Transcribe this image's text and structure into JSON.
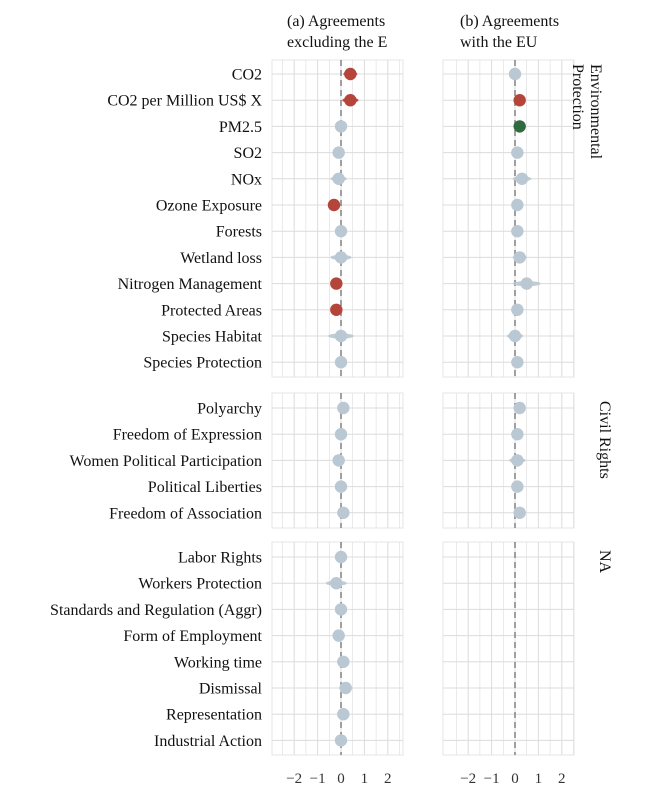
{
  "chart_data": {
    "type": "scatter",
    "titles": [
      "(a) Agreements excluding the EU",
      "(b) Agreements with the EU"
    ],
    "title_lines": [
      [
        "(a) Agreements",
        "excluding the E"
      ],
      [
        "(b) Agreements",
        "with the EU"
      ]
    ],
    "x_ticks": [
      -2,
      -1,
      0,
      1,
      2
    ],
    "x_tick_labels": [
      "−2",
      "−1",
      "0",
      "1",
      "2"
    ],
    "xlim": [
      -2.6,
      2.6
    ],
    "reference_line": 0,
    "colors": {
      "not_significant": "#b9c8d2",
      "negative_or_positive_red": "#b5443a",
      "positive_green": "#2f6b3e",
      "grid": "#dcdcdc",
      "panel_border": "#e6e6e6",
      "zero_line": "#888888"
    },
    "groups": [
      {
        "name": "Environmental Protection",
        "strip_lines": [
          "Environmental",
          "Protection"
        ],
        "items": [
          {
            "label": "CO2",
            "a": {
              "est": 0.4,
              "width": 0.3,
              "color": "red"
            },
            "b": {
              "est": 0.0,
              "width": 0.15,
              "color": "grey"
            }
          },
          {
            "label": "CO2 per Million US$ X",
            "a": {
              "est": 0.4,
              "width": 0.35,
              "color": "red"
            },
            "b": {
              "est": 0.2,
              "width": 0.15,
              "color": "red"
            }
          },
          {
            "label": "PM2.5",
            "a": {
              "est": 0.0,
              "width": 0.12,
              "color": "grey"
            },
            "b": {
              "est": 0.2,
              "width": 0.15,
              "color": "green"
            }
          },
          {
            "label": "SO2",
            "a": {
              "est": -0.1,
              "width": 0.15,
              "color": "grey"
            },
            "b": {
              "est": 0.1,
              "width": 0.15,
              "color": "grey"
            }
          },
          {
            "label": "NOx",
            "a": {
              "est": -0.1,
              "width": 0.35,
              "color": "grey"
            },
            "b": {
              "est": 0.3,
              "width": 0.4,
              "color": "grey"
            }
          },
          {
            "label": "Ozone Exposure",
            "a": {
              "est": -0.3,
              "width": 0.2,
              "color": "red"
            },
            "b": {
              "est": 0.1,
              "width": 0.15,
              "color": "grey"
            }
          },
          {
            "label": "Forests",
            "a": {
              "est": 0.0,
              "width": 0.15,
              "color": "grey"
            },
            "b": {
              "est": 0.1,
              "width": 0.15,
              "color": "grey"
            }
          },
          {
            "label": "Wetland loss",
            "a": {
              "est": 0.0,
              "width": 0.45,
              "color": "grey"
            },
            "b": {
              "est": 0.2,
              "width": 0.3,
              "color": "grey"
            }
          },
          {
            "label": "Nitrogen Management",
            "a": {
              "est": -0.2,
              "width": 0.18,
              "color": "red"
            },
            "b": {
              "est": 0.5,
              "width": 0.6,
              "color": "grey"
            }
          },
          {
            "label": "Protected Areas",
            "a": {
              "est": -0.2,
              "width": 0.18,
              "color": "red"
            },
            "b": {
              "est": 0.1,
              "width": 0.15,
              "color": "grey"
            }
          },
          {
            "label": "Species Habitat",
            "a": {
              "est": 0.0,
              "width": 0.55,
              "color": "grey"
            },
            "b": {
              "est": 0.0,
              "width": 0.35,
              "color": "grey"
            }
          },
          {
            "label": "Species Protection",
            "a": {
              "est": 0.0,
              "width": 0.15,
              "color": "grey"
            },
            "b": {
              "est": 0.1,
              "width": 0.15,
              "color": "grey"
            }
          }
        ]
      },
      {
        "name": "Civil Rights",
        "strip_lines": [
          "Civil Rights"
        ],
        "items": [
          {
            "label": "Polyarchy",
            "a": {
              "est": 0.1,
              "width": 0.15,
              "color": "grey"
            },
            "b": {
              "est": 0.2,
              "width": 0.15,
              "color": "grey"
            }
          },
          {
            "label": "Freedom of Expression",
            "a": {
              "est": 0.0,
              "width": 0.15,
              "color": "grey"
            },
            "b": {
              "est": 0.1,
              "width": 0.15,
              "color": "grey"
            }
          },
          {
            "label": "Women Political Participation",
            "a": {
              "est": -0.1,
              "width": 0.2,
              "color": "grey"
            },
            "b": {
              "est": 0.1,
              "width": 0.35,
              "color": "grey"
            }
          },
          {
            "label": "Political Liberties",
            "a": {
              "est": 0.0,
              "width": 0.15,
              "color": "grey"
            },
            "b": {
              "est": 0.1,
              "width": 0.25,
              "color": "grey"
            }
          },
          {
            "label": "Freedom of Association",
            "a": {
              "est": 0.1,
              "width": 0.25,
              "color": "grey"
            },
            "b": {
              "est": 0.2,
              "width": 0.15,
              "color": "grey"
            }
          }
        ]
      },
      {
        "name": "NA",
        "strip_lines": [
          "NA"
        ],
        "items": [
          {
            "label": "Labor Rights",
            "a": {
              "est": 0.0,
              "width": 0.15,
              "color": "grey"
            },
            "b": null
          },
          {
            "label": "Workers Protection",
            "a": {
              "est": -0.2,
              "width": 0.45,
              "color": "grey"
            },
            "b": null
          },
          {
            "label": "Standards and Regulation (Aggr)",
            "a": {
              "est": 0.0,
              "width": 0.15,
              "color": "grey"
            },
            "b": null
          },
          {
            "label": "Form of Employment",
            "a": {
              "est": -0.1,
              "width": 0.15,
              "color": "grey"
            },
            "b": null
          },
          {
            "label": "Working time",
            "a": {
              "est": 0.1,
              "width": 0.18,
              "color": "grey"
            },
            "b": null
          },
          {
            "label": "Dismissal",
            "a": {
              "est": 0.2,
              "width": 0.28,
              "color": "grey"
            },
            "b": null
          },
          {
            "label": "Representation",
            "a": {
              "est": 0.1,
              "width": 0.15,
              "color": "grey"
            },
            "b": null
          },
          {
            "label": "Industrial Action",
            "a": {
              "est": 0.0,
              "width": 0.15,
              "color": "grey"
            },
            "b": null
          }
        ]
      }
    ]
  }
}
